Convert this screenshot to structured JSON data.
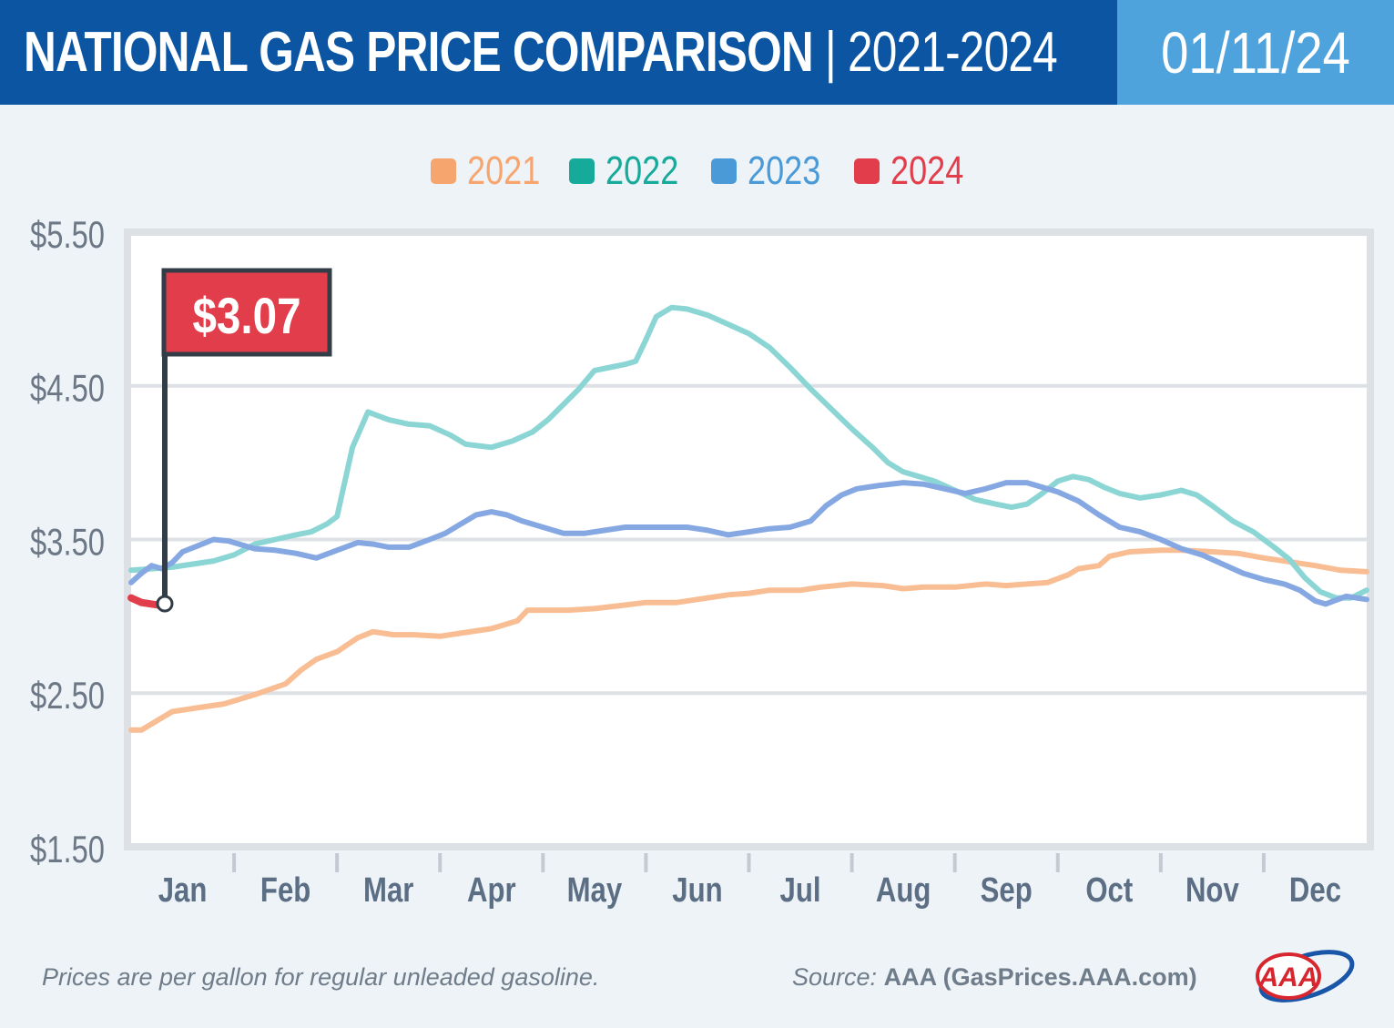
{
  "header": {
    "title_main": "NATIONAL GAS PRICE COMPARISON",
    "title_separator": " | ",
    "title_years": "2021-2024",
    "date": "01/11/24"
  },
  "legend": [
    {
      "label": "2021",
      "color": "#f6a56e"
    },
    {
      "label": "2022",
      "color": "#16aa9a"
    },
    {
      "label": "2023",
      "color": "#4a9ad8"
    },
    {
      "label": "2024",
      "color": "#e23d4b"
    }
  ],
  "callout": {
    "label": "$3.07",
    "color": "#e23d4b"
  },
  "footer": {
    "note": "Prices are per gallon for regular unleaded gasoline.",
    "source_label": "Source:",
    "source_value": "AAA (GasPrices.AAA.com)",
    "logo_text": "AAA"
  },
  "chart_data": {
    "type": "line",
    "y_tick_labels": [
      "$5.50",
      "$4.50",
      "$3.50",
      "$2.50",
      "$1.50"
    ],
    "y_ticks": [
      5.5,
      4.5,
      3.5,
      2.5,
      1.5
    ],
    "ylim": [
      1.5,
      5.5
    ],
    "xlim": [
      0,
      12
    ],
    "grid": true,
    "legend_position": "top-center",
    "months": [
      "Jan",
      "Feb",
      "Mar",
      "Apr",
      "May",
      "Jun",
      "Jul",
      "Aug",
      "Sep",
      "Oct",
      "Nov",
      "Dec"
    ],
    "series": [
      {
        "name": "2021",
        "color": "#f9bd93",
        "x": [
          0,
          0.1,
          0.25,
          0.4,
          0.5,
          0.7,
          0.9,
          1.0,
          1.2,
          1.5,
          1.65,
          1.8,
          2.0,
          2.2,
          2.35,
          2.55,
          2.75,
          3.0,
          3.2,
          3.5,
          3.75,
          3.85,
          4.0,
          4.25,
          4.5,
          4.75,
          5.0,
          5.3,
          5.6,
          5.8,
          6.0,
          6.2,
          6.5,
          6.7,
          7.0,
          7.3,
          7.5,
          7.7,
          8.0,
          8.3,
          8.5,
          8.7,
          8.9,
          9.1,
          9.2,
          9.4,
          9.5,
          9.7,
          10.0,
          10.2,
          10.5,
          10.75,
          11.0,
          11.3,
          11.5,
          11.75,
          12.0
        ],
        "y": [
          2.26,
          2.26,
          2.32,
          2.38,
          2.39,
          2.41,
          2.43,
          2.45,
          2.49,
          2.56,
          2.65,
          2.72,
          2.77,
          2.86,
          2.9,
          2.88,
          2.88,
          2.87,
          2.89,
          2.92,
          2.97,
          3.04,
          3.04,
          3.04,
          3.05,
          3.07,
          3.09,
          3.09,
          3.12,
          3.14,
          3.15,
          3.17,
          3.17,
          3.19,
          3.21,
          3.2,
          3.18,
          3.19,
          3.19,
          3.21,
          3.2,
          3.21,
          3.22,
          3.27,
          3.31,
          3.33,
          3.39,
          3.42,
          3.43,
          3.43,
          3.42,
          3.41,
          3.38,
          3.35,
          3.33,
          3.3,
          3.29
        ]
      },
      {
        "name": "2022",
        "color": "#8bd6d4",
        "x": [
          0,
          0.2,
          0.4,
          0.6,
          0.8,
          1.0,
          1.2,
          1.4,
          1.6,
          1.75,
          1.9,
          2.0,
          2.05,
          2.15,
          2.3,
          2.5,
          2.7,
          2.9,
          3.1,
          3.25,
          3.5,
          3.7,
          3.9,
          4.05,
          4.2,
          4.35,
          4.5,
          4.65,
          4.8,
          4.9,
          5.0,
          5.1,
          5.25,
          5.4,
          5.6,
          5.8,
          6.0,
          6.2,
          6.4,
          6.6,
          6.8,
          7.0,
          7.2,
          7.35,
          7.5,
          7.65,
          7.8,
          8.0,
          8.2,
          8.4,
          8.55,
          8.7,
          8.85,
          9.0,
          9.15,
          9.3,
          9.45,
          9.6,
          9.8,
          10.0,
          10.2,
          10.35,
          10.5,
          10.7,
          10.9,
          11.1,
          11.25,
          11.4,
          11.55,
          11.7,
          11.85,
          12.0
        ],
        "y": [
          3.3,
          3.31,
          3.32,
          3.34,
          3.36,
          3.4,
          3.47,
          3.5,
          3.53,
          3.55,
          3.6,
          3.65,
          3.8,
          4.1,
          4.33,
          4.28,
          4.25,
          4.24,
          4.18,
          4.12,
          4.1,
          4.14,
          4.2,
          4.28,
          4.38,
          4.48,
          4.6,
          4.62,
          4.64,
          4.66,
          4.8,
          4.95,
          5.01,
          5.0,
          4.96,
          4.9,
          4.84,
          4.75,
          4.62,
          4.48,
          4.35,
          4.22,
          4.1,
          4.0,
          3.94,
          3.91,
          3.88,
          3.82,
          3.76,
          3.73,
          3.71,
          3.73,
          3.8,
          3.88,
          3.91,
          3.89,
          3.84,
          3.8,
          3.77,
          3.79,
          3.82,
          3.79,
          3.72,
          3.62,
          3.55,
          3.45,
          3.37,
          3.25,
          3.16,
          3.12,
          3.12,
          3.17
        ]
      },
      {
        "name": "2023",
        "color": "#86a8e2",
        "x": [
          0,
          0.1,
          0.2,
          0.3,
          0.4,
          0.5,
          0.65,
          0.8,
          0.95,
          1.05,
          1.2,
          1.4,
          1.6,
          1.8,
          2.0,
          2.2,
          2.35,
          2.5,
          2.7,
          2.9,
          3.05,
          3.2,
          3.35,
          3.5,
          3.65,
          3.8,
          4.0,
          4.2,
          4.4,
          4.6,
          4.8,
          5.0,
          5.2,
          5.4,
          5.6,
          5.8,
          6.0,
          6.2,
          6.4,
          6.6,
          6.75,
          6.9,
          7.05,
          7.25,
          7.5,
          7.7,
          7.9,
          8.1,
          8.3,
          8.5,
          8.7,
          8.85,
          9.0,
          9.2,
          9.4,
          9.6,
          9.8,
          10.0,
          10.2,
          10.4,
          10.6,
          10.8,
          11.0,
          11.2,
          11.35,
          11.5,
          11.6,
          11.8,
          12.0
        ],
        "y": [
          3.22,
          3.28,
          3.33,
          3.31,
          3.35,
          3.42,
          3.46,
          3.5,
          3.49,
          3.47,
          3.44,
          3.43,
          3.41,
          3.38,
          3.43,
          3.48,
          3.47,
          3.45,
          3.45,
          3.5,
          3.54,
          3.6,
          3.66,
          3.68,
          3.66,
          3.62,
          3.58,
          3.54,
          3.54,
          3.56,
          3.58,
          3.58,
          3.58,
          3.58,
          3.56,
          3.53,
          3.55,
          3.57,
          3.58,
          3.62,
          3.72,
          3.79,
          3.83,
          3.85,
          3.87,
          3.86,
          3.83,
          3.8,
          3.83,
          3.87,
          3.87,
          3.84,
          3.81,
          3.75,
          3.66,
          3.58,
          3.55,
          3.5,
          3.44,
          3.4,
          3.34,
          3.28,
          3.24,
          3.21,
          3.17,
          3.1,
          3.08,
          3.13,
          3.11
        ]
      },
      {
        "name": "2024",
        "color": "#e23d4b",
        "x": [
          0,
          0.1,
          0.2,
          0.3
        ],
        "y": [
          3.12,
          3.09,
          3.08,
          3.07
        ]
      }
    ]
  }
}
